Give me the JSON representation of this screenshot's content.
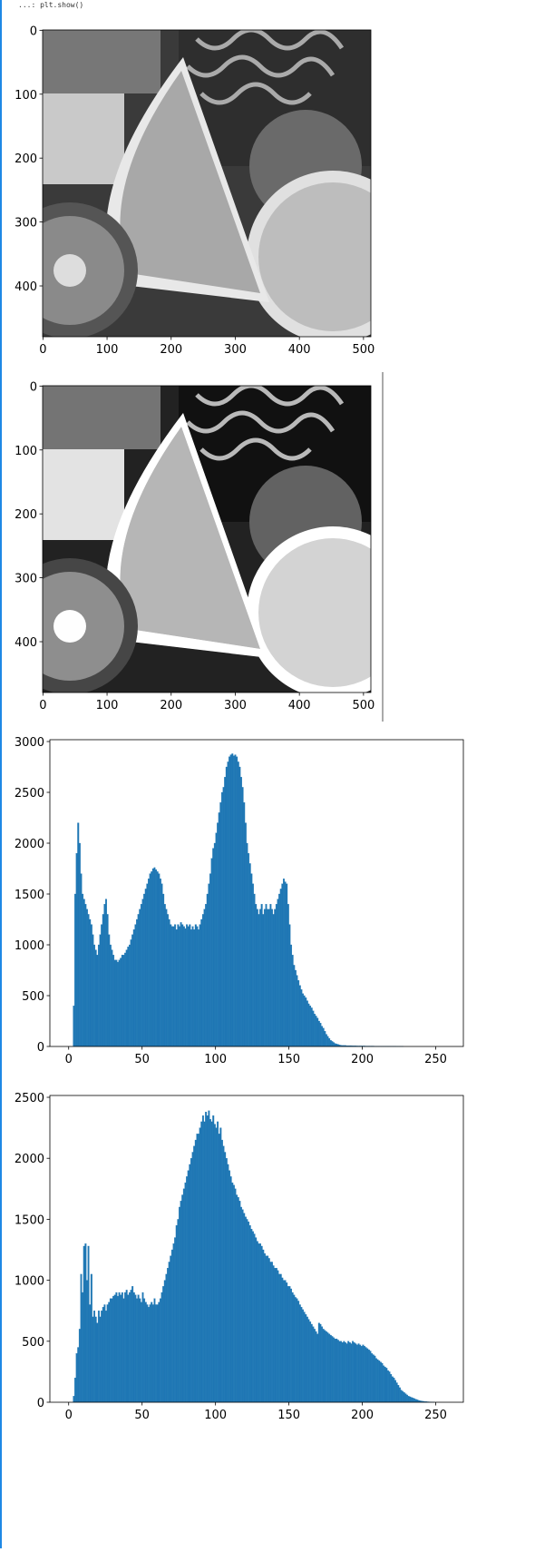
{
  "header": {
    "code_line": "...: plt.show()"
  },
  "chart_data": [
    {
      "type": "image",
      "xlim": [
        -0.5,
        511.5
      ],
      "ylim": [
        479.5,
        -0.5
      ],
      "xticks": [
        0,
        100,
        200,
        300,
        400,
        500
      ],
      "yticks": [
        0,
        100,
        200,
        300,
        400
      ]
    },
    {
      "type": "image",
      "xlim": [
        -0.5,
        511.5
      ],
      "ylim": [
        479.5,
        -0.5
      ],
      "xticks": [
        0,
        100,
        200,
        300,
        400,
        500
      ],
      "yticks": [
        0,
        100,
        200,
        300,
        400
      ]
    },
    {
      "type": "histogram",
      "color": "#1f77b4",
      "xlim": [
        -12.8,
        268.8
      ],
      "ylim": [
        0,
        3018
      ],
      "xticks": [
        0,
        50,
        100,
        150,
        200,
        250
      ],
      "yticks": [
        0,
        500,
        1000,
        1500,
        2000,
        2500,
        3000
      ],
      "bins": [
        0,
        1,
        2,
        3,
        4,
        5,
        6,
        7,
        8,
        9,
        10,
        11,
        12,
        13,
        14,
        15,
        16,
        17,
        18,
        19,
        20,
        21,
        22,
        23,
        24,
        25,
        26,
        27,
        28,
        29,
        30,
        31,
        32,
        33,
        34,
        35,
        36,
        37,
        38,
        39,
        40,
        41,
        42,
        43,
        44,
        45,
        46,
        47,
        48,
        49,
        50,
        51,
        52,
        53,
        54,
        55,
        56,
        57,
        58,
        59,
        60,
        61,
        62,
        63,
        64,
        65,
        66,
        67,
        68,
        69,
        70,
        71,
        72,
        73,
        74,
        75,
        76,
        77,
        78,
        79,
        80,
        81,
        82,
        83,
        84,
        85,
        86,
        87,
        88,
        89,
        90,
        91,
        92,
        93,
        94,
        95,
        96,
        97,
        98,
        99,
        100,
        101,
        102,
        103,
        104,
        105,
        106,
        107,
        108,
        109,
        110,
        111,
        112,
        113,
        114,
        115,
        116,
        117,
        118,
        119,
        120,
        121,
        122,
        123,
        124,
        125,
        126,
        127,
        128,
        129,
        130,
        131,
        132,
        133,
        134,
        135,
        136,
        137,
        138,
        139,
        140,
        141,
        142,
        143,
        144,
        145,
        146,
        147,
        148,
        149,
        150,
        151,
        152,
        153,
        154,
        155,
        156,
        157,
        158,
        159,
        160,
        161,
        162,
        163,
        164,
        165,
        166,
        167,
        168,
        169,
        170,
        171,
        172,
        173,
        174,
        175,
        176,
        177,
        178,
        179,
        180,
        181,
        182,
        183,
        184,
        185,
        186,
        187,
        188,
        189,
        190,
        191,
        192,
        193,
        194,
        195,
        196,
        197,
        198,
        199,
        200,
        201,
        202,
        203,
        204,
        205,
        206,
        207,
        208,
        209,
        210,
        211,
        212,
        213,
        214,
        215,
        216,
        217,
        218,
        219,
        220,
        221,
        222,
        223,
        224,
        225,
        226,
        227,
        228,
        229,
        230,
        231,
        232,
        233,
        234,
        235,
        236,
        237,
        238,
        239,
        240,
        241,
        242,
        243,
        244,
        245,
        246,
        247,
        248,
        249,
        250,
        251,
        252,
        253,
        254,
        255,
        256
      ],
      "counts": [
        0,
        0,
        0,
        400,
        1500,
        1900,
        2200,
        2000,
        1700,
        1500,
        1450,
        1400,
        1350,
        1300,
        1250,
        1200,
        1100,
        1000,
        950,
        900,
        1000,
        1100,
        1200,
        1300,
        1400,
        1450,
        1300,
        1100,
        1000,
        950,
        900,
        850,
        850,
        830,
        850,
        870,
        900,
        900,
        920,
        950,
        980,
        1000,
        1050,
        1100,
        1150,
        1200,
        1250,
        1300,
        1350,
        1400,
        1450,
        1500,
        1550,
        1600,
        1650,
        1700,
        1720,
        1750,
        1760,
        1740,
        1720,
        1700,
        1650,
        1600,
        1500,
        1400,
        1350,
        1300,
        1250,
        1200,
        1180,
        1180,
        1200,
        1150,
        1200,
        1180,
        1220,
        1200,
        1180,
        1160,
        1200,
        1180,
        1200,
        1150,
        1180,
        1150,
        1200,
        1180,
        1150,
        1200,
        1250,
        1300,
        1350,
        1400,
        1500,
        1600,
        1700,
        1850,
        1950,
        2000,
        2100,
        2200,
        2300,
        2400,
        2500,
        2550,
        2650,
        2750,
        2800,
        2850,
        2870,
        2880,
        2860,
        2870,
        2850,
        2800,
        2750,
        2650,
        2550,
        2400,
        2200,
        2000,
        1900,
        1800,
        1700,
        1600,
        1500,
        1400,
        1350,
        1300,
        1350,
        1400,
        1300,
        1350,
        1400,
        1350,
        1350,
        1400,
        1350,
        1300,
        1350,
        1400,
        1450,
        1500,
        1550,
        1600,
        1650,
        1620,
        1600,
        1400,
        1200,
        1000,
        900,
        800,
        750,
        700,
        650,
        600,
        560,
        520,
        500,
        480,
        450,
        420,
        400,
        380,
        350,
        320,
        300,
        280,
        250,
        230,
        200,
        180,
        150,
        120,
        100,
        80,
        60,
        50,
        40,
        30,
        25,
        20,
        15,
        12,
        10,
        10,
        10,
        8,
        8,
        8,
        8,
        6,
        6,
        6,
        5,
        5,
        5,
        5,
        5,
        5,
        4,
        4,
        4,
        4,
        4,
        4,
        3,
        3,
        3,
        3,
        3,
        3,
        3,
        2,
        2,
        2,
        2,
        2,
        2,
        2,
        2,
        1,
        1,
        1,
        1,
        1,
        0,
        0,
        0,
        0,
        0,
        0,
        0,
        0,
        0,
        0,
        0,
        0,
        0,
        0,
        0,
        0,
        0,
        0,
        0,
        0,
        0,
        0,
        0,
        0,
        0,
        0,
        0,
        0
      ]
    },
    {
      "type": "histogram",
      "color": "#1f77b4",
      "xlim": [
        -12.8,
        268.8
      ],
      "ylim": [
        0,
        2515
      ],
      "xticks": [
        0,
        50,
        100,
        150,
        200,
        250
      ],
      "yticks": [
        0,
        500,
        1000,
        1500,
        2000,
        2500
      ],
      "bins": [
        0,
        1,
        2,
        3,
        4,
        5,
        6,
        7,
        8,
        9,
        10,
        11,
        12,
        13,
        14,
        15,
        16,
        17,
        18,
        19,
        20,
        21,
        22,
        23,
        24,
        25,
        26,
        27,
        28,
        29,
        30,
        31,
        32,
        33,
        34,
        35,
        36,
        37,
        38,
        39,
        40,
        41,
        42,
        43,
        44,
        45,
        46,
        47,
        48,
        49,
        50,
        51,
        52,
        53,
        54,
        55,
        56,
        57,
        58,
        59,
        60,
        61,
        62,
        63,
        64,
        65,
        66,
        67,
        68,
        69,
        70,
        71,
        72,
        73,
        74,
        75,
        76,
        77,
        78,
        79,
        80,
        81,
        82,
        83,
        84,
        85,
        86,
        87,
        88,
        89,
        90,
        91,
        92,
        93,
        94,
        95,
        96,
        97,
        98,
        99,
        100,
        101,
        102,
        103,
        104,
        105,
        106,
        107,
        108,
        109,
        110,
        111,
        112,
        113,
        114,
        115,
        116,
        117,
        118,
        119,
        120,
        121,
        122,
        123,
        124,
        125,
        126,
        127,
        128,
        129,
        130,
        131,
        132,
        133,
        134,
        135,
        136,
        137,
        138,
        139,
        140,
        141,
        142,
        143,
        144,
        145,
        146,
        147,
        148,
        149,
        150,
        151,
        152,
        153,
        154,
        155,
        156,
        157,
        158,
        159,
        160,
        161,
        162,
        163,
        164,
        165,
        166,
        167,
        168,
        169,
        170,
        171,
        172,
        173,
        174,
        175,
        176,
        177,
        178,
        179,
        180,
        181,
        182,
        183,
        184,
        185,
        186,
        187,
        188,
        189,
        190,
        191,
        192,
        193,
        194,
        195,
        196,
        197,
        198,
        199,
        200,
        201,
        202,
        203,
        204,
        205,
        206,
        207,
        208,
        209,
        210,
        211,
        212,
        213,
        214,
        215,
        216,
        217,
        218,
        219,
        220,
        221,
        222,
        223,
        224,
        225,
        226,
        227,
        228,
        229,
        230,
        231,
        232,
        233,
        234,
        235,
        236,
        237,
        238,
        239,
        240,
        241,
        242,
        243,
        244,
        245,
        246,
        247,
        248,
        249,
        250,
        251,
        252,
        253,
        254,
        255,
        256
      ],
      "counts": [
        0,
        0,
        0,
        50,
        200,
        400,
        450,
        600,
        1050,
        900,
        1280,
        1300,
        1000,
        1280,
        800,
        1050,
        700,
        750,
        700,
        650,
        750,
        700,
        750,
        780,
        800,
        750,
        800,
        820,
        850,
        850,
        870,
        880,
        900,
        870,
        900,
        880,
        900,
        850,
        900,
        920,
        880,
        900,
        920,
        950,
        900,
        880,
        850,
        880,
        850,
        820,
        900,
        850,
        820,
        800,
        780,
        800,
        820,
        800,
        850,
        800,
        800,
        820,
        850,
        900,
        950,
        1000,
        1050,
        1100,
        1150,
        1200,
        1250,
        1300,
        1350,
        1450,
        1500,
        1600,
        1650,
        1700,
        1750,
        1800,
        1850,
        1900,
        1950,
        2000,
        2050,
        2100,
        2150,
        2200,
        2200,
        2250,
        2300,
        2350,
        2300,
        2380,
        2350,
        2390,
        2320,
        2300,
        2350,
        2280,
        2250,
        2300,
        2200,
        2250,
        2150,
        2100,
        2050,
        2000,
        1950,
        1900,
        1850,
        1800,
        1780,
        1750,
        1700,
        1680,
        1650,
        1600,
        1580,
        1550,
        1520,
        1500,
        1480,
        1450,
        1420,
        1400,
        1380,
        1350,
        1320,
        1300,
        1300,
        1280,
        1250,
        1220,
        1200,
        1200,
        1180,
        1150,
        1150,
        1120,
        1100,
        1100,
        1080,
        1050,
        1050,
        1020,
        1000,
        1000,
        980,
        950,
        950,
        930,
        900,
        880,
        860,
        850,
        830,
        800,
        780,
        760,
        740,
        720,
        700,
        680,
        660,
        640,
        620,
        600,
        580,
        560,
        650,
        640,
        620,
        600,
        590,
        580,
        570,
        560,
        550,
        540,
        530,
        520,
        520,
        510,
        500,
        500,
        490,
        500,
        490,
        480,
        500,
        490,
        480,
        500,
        490,
        480,
        470,
        480,
        470,
        460,
        470,
        460,
        450,
        440,
        430,
        420,
        400,
        390,
        380,
        360,
        350,
        340,
        330,
        320,
        300,
        290,
        280,
        260,
        250,
        230,
        210,
        200,
        180,
        160,
        140,
        120,
        100,
        90,
        80,
        70,
        60,
        50,
        45,
        40,
        35,
        30,
        25,
        20,
        15,
        12,
        10,
        8,
        6,
        5,
        4,
        3,
        2,
        1,
        1,
        0,
        0,
        0,
        0,
        0,
        0,
        0
      ]
    }
  ]
}
